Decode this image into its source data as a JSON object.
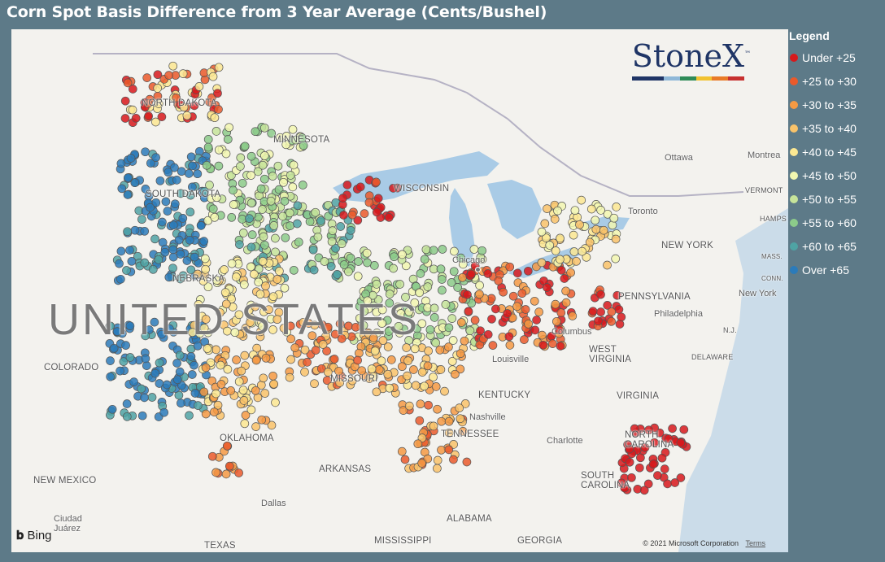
{
  "title": "Corn Spot Basis Difference from 3 Year Average (Cents/Bushel)",
  "legend": {
    "title": "Legend",
    "items": [
      {
        "label": "Under +25",
        "color": "#d7191c"
      },
      {
        "label": "+25 to +30",
        "color": "#ea5a2b"
      },
      {
        "label": "+30 to +35",
        "color": "#f49a44"
      },
      {
        "label": "+35 to +40",
        "color": "#f9c36a"
      },
      {
        "label": "+40 to +45",
        "color": "#fbe892"
      },
      {
        "label": "+45 to +50",
        "color": "#f2f7b0"
      },
      {
        "label": "+50 to +55",
        "color": "#c6e49a"
      },
      {
        "label": "+55 to +60",
        "color": "#8ccb8a"
      },
      {
        "label": "+60 to +65",
        "color": "#4fa3a4"
      },
      {
        "label": "Over +65",
        "color": "#2b7bba"
      }
    ]
  },
  "logo": {
    "text": "StoneX",
    "tm": "™"
  },
  "attribution": {
    "bing": "Bing",
    "copyright": "© 2021 Microsoft Corporation",
    "terms": "Terms"
  },
  "labels": {
    "north_dakota": "NORTH DAKOTA",
    "minnesota": "MINNESOTA",
    "south_dakota": "SOUTH DAKOTA",
    "nebraska": "NEBRASKA",
    "united_states": "UNITED STATES",
    "colorado": "COLORADO",
    "missouri": "MISSOURI",
    "kentucky": "KENTUCKY",
    "tennessee": "TENNESSEE",
    "oklahoma": "OKLAHOMA",
    "arkansas": "ARKANSAS",
    "new_mexico": "NEW MEXICO",
    "texas": "TEXAS",
    "mississippi": "MISSISSIPPI",
    "alabama": "ALABAMA",
    "georgia": "GEORGIA",
    "south_carolina": "SOUTH CAROLINA",
    "north_carolina": "NORTH CAROLINA",
    "virginia": "VIRGINIA",
    "west_virginia": "WEST VIRGINIA",
    "pennsylvania": "PENNSYLVANIA",
    "new_york": "NEW YORK",
    "delaware": "DELAWARE",
    "vermont": "VERMONT",
    "hampshire": "HAMPS",
    "mass": "MASS.",
    "conn": "CONN.",
    "nj": "N.J.",
    "wisconsin": "WISCONSIN",
    "chicago": "Chicago",
    "toronto": "Toronto",
    "ottawa": "Ottawa",
    "montreal": "Montrea",
    "philadelphia": "Philadelphia",
    "new_york_city": "New York",
    "columbus": "Columbus",
    "louisville": "Louisville",
    "nashville": "Nashville",
    "charlotte": "Charlotte",
    "dallas": "Dallas",
    "ciudad_juarez": "Ciudad Juárez"
  }
}
